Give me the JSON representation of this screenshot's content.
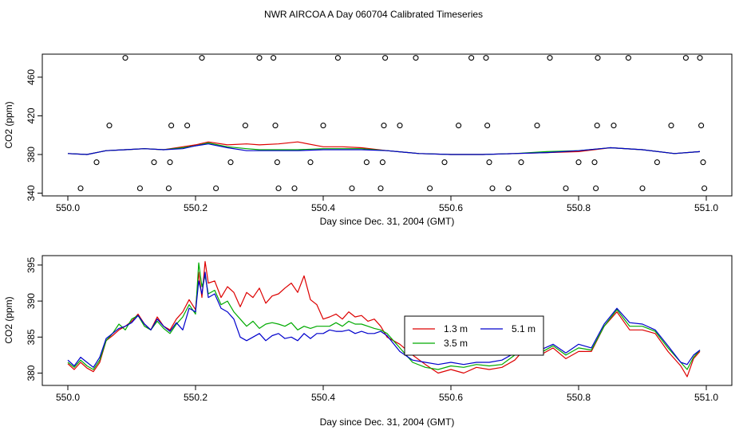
{
  "title": "NWR AIRCOA A  Day 060704  Calibrated Timeseries",
  "chart_data": [
    {
      "type": "line",
      "ylabel": "CO2 (ppm)",
      "xlabel": "Day since Dec. 31, 2004 (GMT)",
      "xlim": [
        550.0,
        551.0
      ],
      "ylim": [
        338,
        483
      ],
      "x_ticks": [
        550.0,
        550.2,
        550.4,
        550.6,
        550.8,
        551.0
      ],
      "x_tick_labels": [
        "550.0",
        "550.2",
        "550.4",
        "550.6",
        "550.8",
        "551.0"
      ],
      "y_ticks": [
        340,
        380,
        420,
        460
      ],
      "y_tick_labels": [
        "340",
        "380",
        "420",
        "460"
      ],
      "series": [
        {
          "name": "1.3 m",
          "color": "#dd0000",
          "x": [
            550.0,
            550.03,
            550.06,
            550.09,
            550.12,
            550.15,
            550.18,
            550.2,
            550.22,
            550.25,
            550.28,
            550.3,
            550.33,
            550.36,
            550.4,
            550.43,
            550.46,
            550.5,
            550.55,
            550.6,
            550.65,
            550.7,
            550.75,
            550.8,
            550.85,
            550.9,
            550.95,
            550.99
          ],
          "values": [
            381,
            380,
            384,
            385,
            386,
            385,
            388,
            390,
            393,
            390,
            391,
            390,
            391,
            393,
            388,
            388,
            387,
            384,
            381,
            380,
            380,
            381,
            382,
            383,
            387,
            385,
            381,
            383
          ]
        },
        {
          "name": "3.5 m",
          "color": "#00aa00",
          "x": [
            550.0,
            550.03,
            550.06,
            550.09,
            550.12,
            550.15,
            550.18,
            550.2,
            550.22,
            550.25,
            550.28,
            550.3,
            550.33,
            550.36,
            550.4,
            550.43,
            550.46,
            550.5,
            550.55,
            550.6,
            550.65,
            550.7,
            550.75,
            550.8,
            550.85,
            550.9,
            550.95,
            550.99
          ],
          "values": [
            381,
            380,
            384,
            385,
            386,
            385,
            387,
            389,
            392,
            388,
            386,
            385,
            385,
            385,
            386,
            386,
            386,
            384,
            381,
            380,
            380,
            381,
            383,
            384,
            387,
            385,
            381,
            383
          ]
        },
        {
          "name": "5.1 m",
          "color": "#0000cc",
          "x": [
            550.0,
            550.03,
            550.06,
            550.09,
            550.12,
            550.15,
            550.18,
            550.2,
            550.22,
            550.25,
            550.28,
            550.3,
            550.33,
            550.36,
            550.4,
            550.43,
            550.46,
            550.5,
            550.55,
            550.6,
            550.65,
            550.7,
            550.75,
            550.8,
            550.85,
            550.9,
            550.95,
            550.99
          ],
          "values": [
            381,
            380,
            384,
            385,
            386,
            385,
            386,
            389,
            391,
            387,
            384,
            384,
            384,
            384,
            385,
            385,
            385,
            384,
            381,
            380,
            380,
            381,
            382,
            384,
            387,
            385,
            381,
            383
          ]
        },
        {
          "name": "outliers",
          "type": "scatter",
          "marker": "open-circle",
          "x": [
            550.02,
            550.045,
            550.065,
            550.09,
            550.113,
            550.135,
            550.158,
            550.16,
            550.162,
            550.187,
            550.21,
            550.232,
            550.255,
            550.278,
            550.3,
            550.322,
            550.325,
            550.328,
            550.33,
            550.355,
            550.38,
            550.4,
            550.423,
            550.445,
            550.468,
            550.49,
            550.493,
            550.495,
            550.497,
            550.52,
            550.545,
            550.567,
            550.59,
            550.612,
            550.632,
            550.655,
            550.657,
            550.66,
            550.665,
            550.69,
            550.71,
            550.735,
            550.755,
            550.78,
            550.8,
            550.825,
            550.827,
            550.829,
            550.83,
            550.855,
            550.878,
            550.9,
            550.923,
            550.945,
            550.968,
            550.99,
            550.992,
            550.995,
            550.997
          ],
          "values": [
            345,
            372,
            410,
            480,
            345,
            372,
            345,
            372,
            410,
            410,
            480,
            345,
            372,
            410,
            480,
            480,
            410,
            372,
            345,
            345,
            372,
            410,
            480,
            345,
            372,
            345,
            372,
            410,
            480,
            410,
            480,
            345,
            372,
            410,
            480,
            480,
            410,
            372,
            345,
            345,
            372,
            410,
            480,
            345,
            372,
            372,
            345,
            410,
            480,
            410,
            480,
            345,
            372,
            410,
            480,
            480,
            410,
            372,
            345
          ]
        }
      ]
    },
    {
      "type": "line",
      "ylabel": "CO2 (ppm)",
      "xlabel": "Day since Dec. 31, 2004 (GMT)",
      "xlim": [
        550.0,
        551.0
      ],
      "ylim": [
        378.4,
        396.2
      ],
      "x_ticks": [
        550.0,
        550.2,
        550.4,
        550.6,
        550.8,
        551.0
      ],
      "x_tick_labels": [
        "550.0",
        "550.2",
        "550.4",
        "550.6",
        "550.8",
        "551.0"
      ],
      "y_ticks": [
        380,
        385,
        390,
        395
      ],
      "y_tick_labels": [
        "380",
        "385",
        "390",
        "395"
      ],
      "legend": {
        "position": "center-right",
        "entries": [
          "1.3 m",
          "3.5 m",
          "5.1 m"
        ]
      },
      "series": [
        {
          "name": "1.3 m",
          "color": "#dd0000",
          "x": [
            550.0,
            550.01,
            550.02,
            550.03,
            550.04,
            550.05,
            550.06,
            550.07,
            550.08,
            550.09,
            550.1,
            550.11,
            550.12,
            550.13,
            550.14,
            550.15,
            550.16,
            550.17,
            550.18,
            550.19,
            550.2,
            550.205,
            550.21,
            550.215,
            550.22,
            550.23,
            550.24,
            550.25,
            550.26,
            550.27,
            550.28,
            550.29,
            550.3,
            550.31,
            550.32,
            550.33,
            550.34,
            550.35,
            550.36,
            550.37,
            550.38,
            550.39,
            550.4,
            550.41,
            550.42,
            550.43,
            550.44,
            550.45,
            550.46,
            550.47,
            550.48,
            550.49,
            550.5,
            550.52,
            550.54,
            550.56,
            550.58,
            550.6,
            550.62,
            550.64,
            550.66,
            550.68,
            550.7,
            550.72,
            550.74,
            550.76,
            550.78,
            550.8,
            550.82,
            550.84,
            550.86,
            550.88,
            550.9,
            550.92,
            550.94,
            550.96,
            550.97,
            550.98,
            550.99
          ],
          "values": [
            381.3,
            380.5,
            381.5,
            380.7,
            380.2,
            381.5,
            384.5,
            385.2,
            386,
            386.5,
            387.2,
            388.2,
            386.8,
            386,
            387.8,
            386.5,
            386,
            387.5,
            388.5,
            390.2,
            388.8,
            394,
            390.5,
            395.5,
            392.5,
            392.8,
            390.5,
            392,
            391.2,
            389.2,
            391.2,
            390.5,
            391.8,
            389.7,
            390.7,
            391,
            391.8,
            392.5,
            391.2,
            393.5,
            390.2,
            389.5,
            387.5,
            387.8,
            388.2,
            387.5,
            388.5,
            387.8,
            388,
            387.2,
            387.5,
            386.5,
            385,
            384,
            382.5,
            381.2,
            380,
            380.5,
            380,
            380.8,
            380.5,
            380.8,
            381.8,
            383.8,
            382.5,
            383.5,
            382,
            383,
            383,
            386.5,
            388.5,
            386,
            386,
            385.5,
            383,
            381,
            379.5,
            382,
            383
          ]
        },
        {
          "name": "3.5 m",
          "color": "#00aa00",
          "x": [
            550.0,
            550.01,
            550.02,
            550.03,
            550.04,
            550.05,
            550.06,
            550.07,
            550.08,
            550.09,
            550.1,
            550.11,
            550.12,
            550.13,
            550.14,
            550.15,
            550.16,
            550.17,
            550.18,
            550.19,
            550.2,
            550.205,
            550.21,
            550.215,
            550.22,
            550.23,
            550.24,
            550.25,
            550.26,
            550.27,
            550.28,
            550.29,
            550.3,
            550.31,
            550.32,
            550.33,
            550.34,
            550.35,
            550.36,
            550.37,
            550.38,
            550.39,
            550.4,
            550.41,
            550.42,
            550.43,
            550.44,
            550.45,
            550.46,
            550.47,
            550.48,
            550.49,
            550.5,
            550.52,
            550.54,
            550.56,
            550.58,
            550.6,
            550.62,
            550.64,
            550.66,
            550.68,
            550.7,
            550.72,
            550.74,
            550.76,
            550.78,
            550.8,
            550.82,
            550.84,
            550.86,
            550.88,
            550.9,
            550.92,
            550.94,
            550.96,
            550.97,
            550.98,
            550.99
          ],
          "values": [
            381.5,
            380.8,
            381.8,
            381,
            380.5,
            381.8,
            384.5,
            385.5,
            386.8,
            386,
            387.5,
            388,
            386.5,
            386,
            387.2,
            386.2,
            385.5,
            386.8,
            387.8,
            389.5,
            388.2,
            395.3,
            392,
            393.5,
            391,
            391.5,
            389.5,
            390,
            388.5,
            387.5,
            386.5,
            387.2,
            386.2,
            386.8,
            387,
            386.8,
            386.5,
            387,
            386,
            386.5,
            386.2,
            386.5,
            386.5,
            386.5,
            387,
            386.5,
            387.2,
            386.8,
            386.8,
            386.5,
            386.2,
            386,
            385.5,
            383.5,
            381.5,
            380.8,
            380.5,
            381,
            380.8,
            381.2,
            381,
            381.2,
            382.5,
            383.5,
            382.8,
            383.8,
            382.5,
            383.5,
            383.2,
            386.5,
            388.8,
            386.5,
            386.5,
            385.8,
            383.5,
            381.5,
            380.5,
            382.2,
            383.2
          ]
        },
        {
          "name": "5.1 m",
          "color": "#0000cc",
          "x": [
            550.0,
            550.01,
            550.02,
            550.03,
            550.04,
            550.05,
            550.06,
            550.07,
            550.08,
            550.09,
            550.1,
            550.11,
            550.12,
            550.13,
            550.14,
            550.15,
            550.16,
            550.17,
            550.18,
            550.19,
            550.2,
            550.205,
            550.21,
            550.215,
            550.22,
            550.23,
            550.24,
            550.25,
            550.26,
            550.27,
            550.28,
            550.29,
            550.3,
            550.31,
            550.32,
            550.33,
            550.34,
            550.35,
            550.36,
            550.37,
            550.38,
            550.39,
            550.4,
            550.41,
            550.42,
            550.43,
            550.44,
            550.45,
            550.46,
            550.47,
            550.48,
            550.49,
            550.5,
            550.52,
            550.54,
            550.56,
            550.58,
            550.6,
            550.62,
            550.64,
            550.66,
            550.68,
            550.7,
            550.72,
            550.74,
            550.76,
            550.78,
            550.8,
            550.82,
            550.84,
            550.86,
            550.88,
            550.9,
            550.92,
            550.94,
            550.96,
            550.97,
            550.98,
            550.99
          ],
          "values": [
            381.8,
            381,
            382.2,
            381.5,
            380.8,
            382.2,
            384.8,
            385.5,
            386.2,
            386.5,
            387,
            388,
            386.8,
            386,
            387.5,
            386.5,
            385.8,
            387,
            386,
            389,
            388.5,
            392.8,
            391,
            394,
            390.5,
            391,
            389,
            388.5,
            387.5,
            385,
            384.5,
            385,
            385.5,
            384.5,
            385.2,
            385.5,
            384.8,
            385,
            384.5,
            385.5,
            384.8,
            385.5,
            385.5,
            386,
            385.8,
            385.8,
            386,
            385.5,
            385.8,
            385.5,
            385.5,
            385.8,
            385.2,
            383,
            381.8,
            381.5,
            381.2,
            381.5,
            381.2,
            381.5,
            381.5,
            381.8,
            382.8,
            384,
            383.2,
            384,
            382.8,
            384,
            383.5,
            386.8,
            389,
            387,
            386.8,
            386,
            383.8,
            381.5,
            381.2,
            382.5,
            383.2
          ]
        }
      ]
    }
  ]
}
